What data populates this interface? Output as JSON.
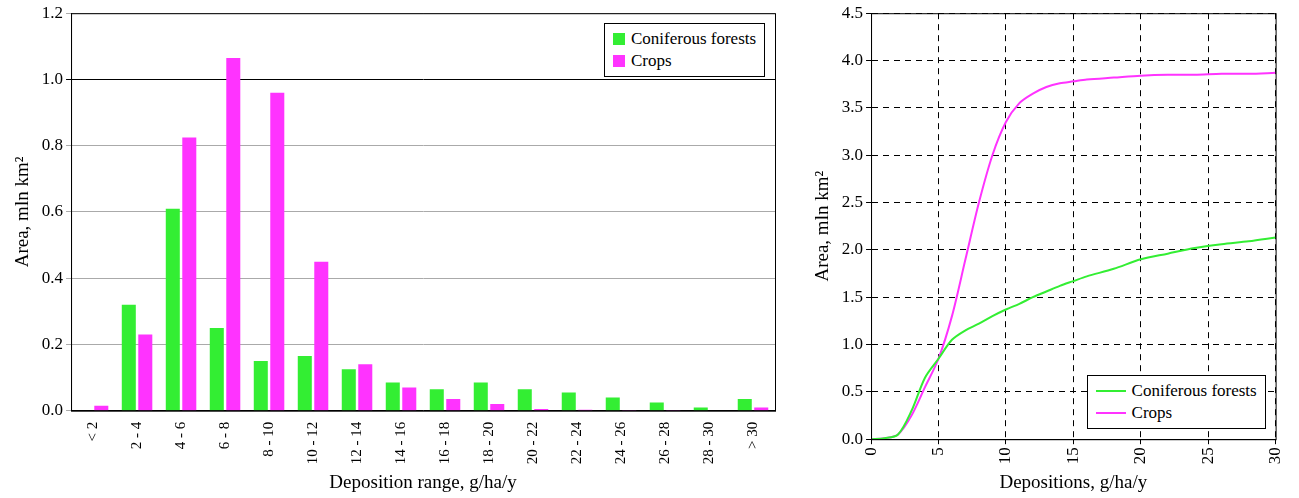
{
  "chart_data": [
    {
      "type": "bar",
      "x_label": "Deposition range, g/ha/y",
      "y_label": "Area, mln km²",
      "categories": [
        "< 2",
        "2 - 4",
        "4 - 6",
        "6 - 8",
        "8 - 10",
        "10 - 12",
        "12 - 14",
        "14 - 16",
        "16 - 18",
        "18 - 20",
        "20 - 22",
        "22 - 24",
        "24 - 26",
        "26 - 28",
        "28 - 30",
        "> 30"
      ],
      "series": [
        {
          "name": "Coniferous forests",
          "color": "#33ee33",
          "values": [
            0,
            0.32,
            0.61,
            0.25,
            0.15,
            0.165,
            0.125,
            0.085,
            0.065,
            0.085,
            0.065,
            0.055,
            0.04,
            0.025,
            0.01,
            0.035
          ]
        },
        {
          "name": "Crops",
          "color": "#ff33ff",
          "values": [
            0.015,
            0.23,
            0.825,
            1.065,
            0.96,
            0.45,
            0.14,
            0.07,
            0.035,
            0.02,
            0.005,
            0.003,
            0.002,
            0.002,
            0,
            0.01
          ]
        }
      ],
      "ylim": [
        0,
        1.2
      ],
      "yticks": [
        {
          "value": 0,
          "label": "0.0"
        },
        {
          "value": 0.2,
          "label": "0.2"
        },
        {
          "value": 0.4,
          "label": "0.4"
        },
        {
          "value": 0.6,
          "label": "0.6"
        },
        {
          "value": 0.8,
          "label": "0.8"
        },
        {
          "value": 1,
          "label": "1.0"
        },
        {
          "value": 1.2,
          "label": "1.2"
        }
      ],
      "grid": true,
      "legend": "upper right"
    },
    {
      "type": "line",
      "x_label": "Depositions, g/ha/y",
      "y_label": "Area, mln km²",
      "x": [
        0,
        1,
        2,
        3,
        4,
        5,
        6,
        7,
        8,
        9,
        10,
        11,
        12,
        13,
        14,
        15,
        16,
        18,
        20,
        22,
        24,
        26,
        28,
        30
      ],
      "series": [
        {
          "name": "Coniferous forests",
          "color": "#33ee33",
          "values": [
            0,
            0.01,
            0.05,
            0.3,
            0.65,
            0.85,
            1.05,
            1.15,
            1.22,
            1.3,
            1.37,
            1.43,
            1.5,
            1.56,
            1.62,
            1.67,
            1.72,
            1.8,
            1.9,
            1.96,
            2.02,
            2.06,
            2.09,
            2.13
          ]
        },
        {
          "name": "Crops",
          "color": "#ff33ff",
          "values": [
            0,
            0.01,
            0.05,
            0.25,
            0.55,
            0.85,
            1.3,
            1.9,
            2.5,
            3.0,
            3.35,
            3.55,
            3.65,
            3.72,
            3.76,
            3.78,
            3.8,
            3.82,
            3.84,
            3.85,
            3.85,
            3.86,
            3.86,
            3.87
          ]
        }
      ],
      "xlim": [
        0,
        30
      ],
      "xticks": [
        0,
        5,
        10,
        15,
        20,
        25,
        30
      ],
      "ylim": [
        0,
        4.5
      ],
      "yticks": [
        {
          "value": 0,
          "label": "0.0"
        },
        {
          "value": 0.5,
          "label": "0.5"
        },
        {
          "value": 1,
          "label": "1.0"
        },
        {
          "value": 1.5,
          "label": "1.5"
        },
        {
          "value": 2,
          "label": "2.0"
        },
        {
          "value": 2.5,
          "label": "2.5"
        },
        {
          "value": 3,
          "label": "3.0"
        },
        {
          "value": 3.5,
          "label": "3.5"
        },
        {
          "value": 4,
          "label": "4.0"
        },
        {
          "value": 4.5,
          "label": "4.5"
        }
      ],
      "grid": true,
      "legend": "lower right"
    }
  ]
}
